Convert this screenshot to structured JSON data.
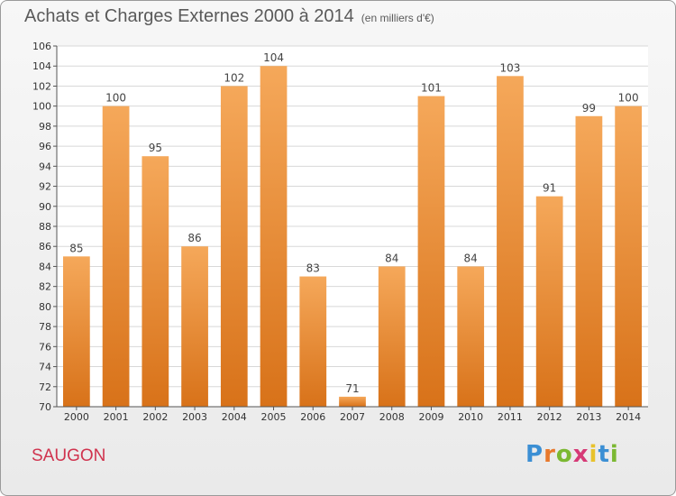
{
  "title": "Achats et Charges Externes 2000 à 2014",
  "subtitle": "(en milliers d'€)",
  "commune": "SAUGON",
  "brand": {
    "text": "Proxiti",
    "colors": [
      "#3b8fd4",
      "#e8792c",
      "#7bb832",
      "#d63a76",
      "#e8c22c",
      "#3b8fd4",
      "#7bb832"
    ]
  },
  "colors": {
    "bar_top": "#f5a85a",
    "bar_bottom": "#d87219",
    "grid": "#d8d8d8"
  },
  "chart_data": {
    "type": "bar",
    "categories": [
      "2000",
      "2001",
      "2002",
      "2003",
      "2004",
      "2005",
      "2006",
      "2007",
      "2008",
      "2009",
      "2010",
      "2011",
      "2012",
      "2013",
      "2014"
    ],
    "values": [
      85,
      100,
      95,
      86,
      102,
      104,
      83,
      71,
      84,
      101,
      84,
      103,
      91,
      99,
      100
    ],
    "ylim": [
      70,
      106
    ],
    "yticks": [
      70,
      72,
      74,
      76,
      78,
      80,
      82,
      84,
      86,
      88,
      90,
      92,
      94,
      96,
      98,
      100,
      102,
      104,
      106
    ],
    "grid": true
  }
}
